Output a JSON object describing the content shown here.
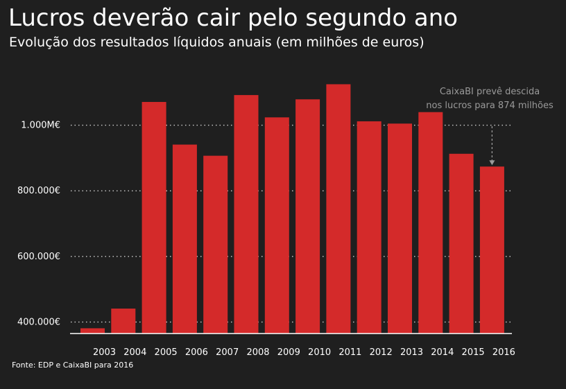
{
  "header": {
    "title": "Lucros deverão cair pelo segundo ano",
    "subtitle": "Evolução dos resultados líquidos anuais (em milhões de euros)"
  },
  "footer": {
    "source": "Fonte: EDP e CaixaBI para 2016"
  },
  "colors": {
    "background": "#1f1f1f",
    "bar": "#d42a2a",
    "grid": "#cfcfcf",
    "annotation": "#9a9a9a"
  },
  "chart_data": {
    "type": "bar",
    "title": "Lucros deverão cair pelo segundo ano",
    "subtitle": "Evolução dos resultados líquidos anuais (em milhões de euros)",
    "categories": [
      "2003",
      "2004",
      "2005",
      "2006",
      "2007",
      "2008",
      "2009",
      "2010",
      "2011",
      "2012",
      "2013",
      "2014",
      "2015",
      "2016"
    ],
    "values": [
      381,
      441,
      1071,
      941,
      907,
      1092,
      1024,
      1079,
      1125,
      1012,
      1005,
      1040,
      913,
      874
    ],
    "ylim": [
      365,
      1200
    ],
    "yticks": [
      400,
      600,
      800,
      1000
    ],
    "ytick_labels": [
      "400.000€",
      "600.000€",
      "800.000€",
      "1.000M€"
    ],
    "grid": true,
    "grid_style": "dotted",
    "annotation": {
      "category": "2016",
      "lines": [
        "CaixaBI prevê descida",
        "nos lucros para 874 milhões"
      ]
    }
  }
}
